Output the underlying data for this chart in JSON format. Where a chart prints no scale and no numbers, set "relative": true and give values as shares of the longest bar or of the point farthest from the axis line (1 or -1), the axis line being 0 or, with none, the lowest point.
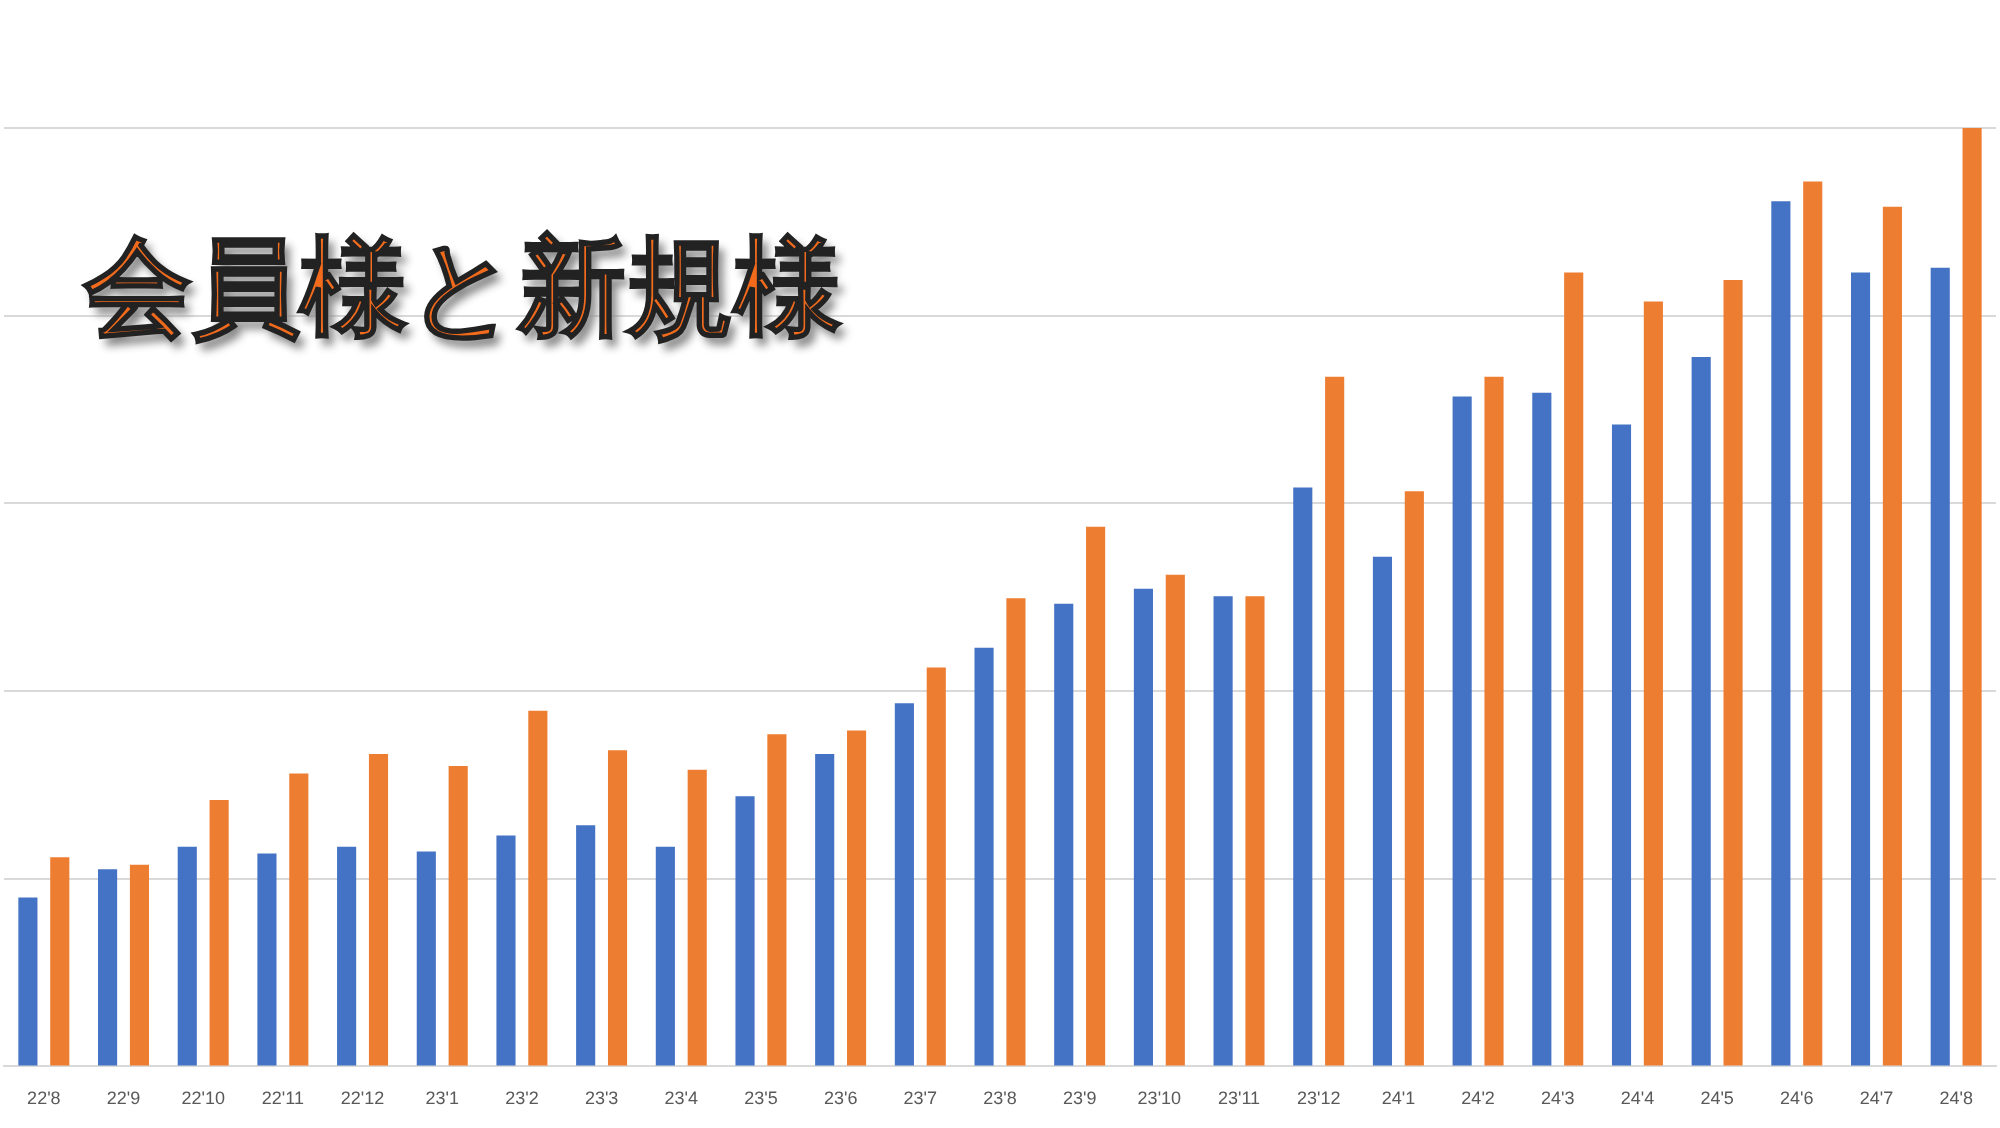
{
  "chart_data": {
    "type": "bar",
    "title": "会員様と新規様",
    "relative": true,
    "grid": "y",
    "categories": [
      "22'8",
      "22'9",
      "22'10",
      "22'11",
      "22'12",
      "23'1",
      "23'2",
      "23'3",
      "23'4",
      "23'5",
      "23'6",
      "23'7",
      "23'8",
      "23'9",
      "23'10",
      "23'11",
      "23'12",
      "24'1",
      "24'2",
      "24'3",
      "24'4",
      "24'5",
      "24'6",
      "24'7",
      "24'8"
    ],
    "series": [
      {
        "color": "#4472c4",
        "values": [
          0.18,
          0.21,
          0.234,
          0.227,
          0.234,
          0.229,
          0.246,
          0.257,
          0.234,
          0.288,
          0.333,
          0.387,
          0.446,
          0.493,
          0.509,
          0.501,
          0.617,
          0.543,
          0.714,
          0.718,
          0.684,
          0.756,
          0.922,
          0.846,
          0.851
        ]
      },
      {
        "color": "#ed7d31",
        "values": [
          0.223,
          0.215,
          0.284,
          0.312,
          0.333,
          0.32,
          0.379,
          0.337,
          0.316,
          0.354,
          0.358,
          0.425,
          0.499,
          0.575,
          0.524,
          0.501,
          0.735,
          0.613,
          0.735,
          0.846,
          0.815,
          0.838,
          0.943,
          0.916,
          1
        ]
      }
    ]
  }
}
